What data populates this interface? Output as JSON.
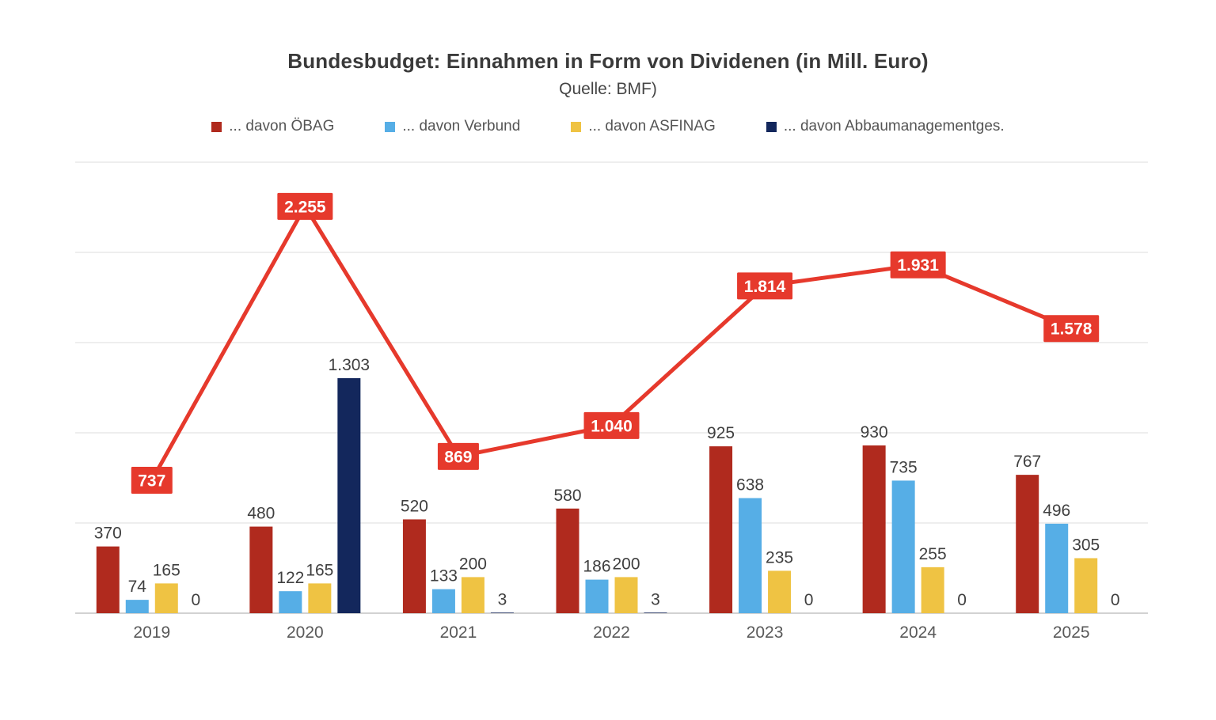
{
  "chart_data": {
    "type": "bar",
    "title": "Bundesbudget: Einnahmen in Form von Dividenen (in Mill. Euro)",
    "subtitle": "Quelle: BMF)",
    "categories": [
      "2019",
      "2020",
      "2021",
      "2022",
      "2023",
      "2024",
      "2025"
    ],
    "series": [
      {
        "name": "... davon ÖBAG",
        "type": "bar",
        "color": "#b02a1e",
        "values": [
          370,
          480,
          520,
          580,
          925,
          930,
          767
        ],
        "labels": [
          "370",
          "480",
          "520",
          "580",
          "925",
          "930",
          "767"
        ]
      },
      {
        "name": "... davon Verbund",
        "type": "bar",
        "color": "#56aee6",
        "values": [
          74,
          122,
          133,
          186,
          638,
          735,
          496
        ],
        "labels": [
          "74",
          "122",
          "133",
          "186",
          "638",
          "735",
          "496"
        ]
      },
      {
        "name": "... davon ASFINAG",
        "type": "bar",
        "color": "#efc343",
        "values": [
          165,
          165,
          200,
          200,
          235,
          255,
          305
        ],
        "labels": [
          "165",
          "165",
          "200",
          "200",
          "235",
          "255",
          "305"
        ]
      },
      {
        "name": "... davon Abbaumanagementges.",
        "type": "bar",
        "color": "#13275c",
        "values": [
          0,
          1303,
          3,
          3,
          0,
          0,
          0
        ],
        "labels": [
          "0",
          "1.303",
          "3",
          "3",
          "0",
          "0",
          "0"
        ]
      }
    ],
    "line": {
      "type": "line",
      "color": "#e6392c",
      "label_text_color": "#ffffff",
      "values": [
        737,
        2255,
        869,
        1040,
        1814,
        1931,
        1578
      ],
      "labels": [
        "737",
        "2.255",
        "869",
        "1.040",
        "1.814",
        "1.931",
        "1.578"
      ]
    },
    "ylim": [
      0,
      2500
    ],
    "gridline_step": 500,
    "grid": true,
    "y_axis_labels_visible": false,
    "legend_position": "top",
    "xlabel": "",
    "ylabel": ""
  }
}
